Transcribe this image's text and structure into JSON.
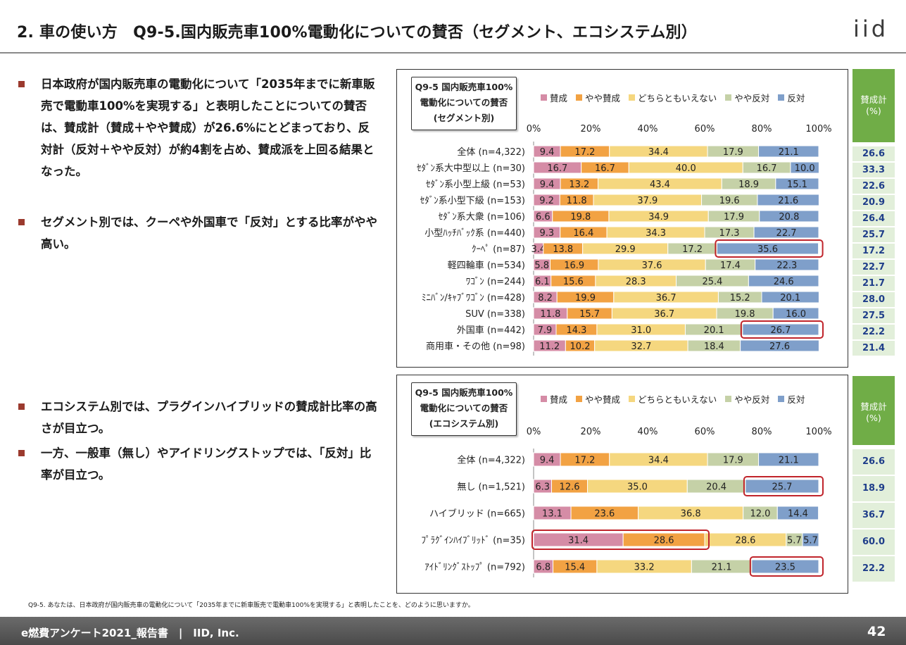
{
  "header": {
    "title": "2. 車の使い方　Q9-5.国内販売車100%電動化についての賛否（セグメント、エコシステム別）",
    "logo": "iid"
  },
  "bullets": [
    "日本政府が国内販売車の電動化について「2035年までに新車販売で電動車100%を実現する」と表明したことについての賛否は、賛成計（賛成＋やや賛成）が26.6%にとどまっており、反対計（反対＋やや反対）が約4割を占め、賛成派を上回る結果となった。",
    "セグメント別では、クーペや外国車で「反対」とする比率がやや高い。",
    "エコシステム別では、プラグインハイブリッドの賛成計比率の高さが目立つ。",
    "一方、一般車（無し）やアイドリングストップでは、「反対」比率が目立つ。"
  ],
  "colors": {
    "賛成": "#d58ca6",
    "やや賛成": "#f2a243",
    "どちらともいえない": "#f5d77f",
    "やや反対": "#c5d1a7",
    "反対": "#7f9fca",
    "highlight": "#c0242b",
    "sum_header": "#70ad47",
    "sum_cell": "#e2efda"
  },
  "legend_labels": [
    "賛成",
    "やや賛成",
    "どちらともいえない",
    "やや反対",
    "反対"
  ],
  "sum_header": "賛成計\n(%)",
  "chart_data": [
    {
      "type": "bar",
      "orientation": "horizontal-stacked-100",
      "title": "Q9-5 国内販売車100%\n電動化についての賛否\n(セグメント別)",
      "xlim": [
        0,
        100
      ],
      "x_ticks": [
        "0%",
        "20%",
        "40%",
        "60%",
        "80%",
        "100%"
      ],
      "categories": [
        "全体 (n=4,322)",
        "ｾﾀﾞﾝ系大中型以上 (n=30)",
        "ｾﾀﾞﾝ系小型上級 (n=53)",
        "ｾﾀﾞﾝ系小型下級 (n=153)",
        "ｾﾀﾞﾝ系大衆 (n=106)",
        "小型ﾊｯﾁﾊﾞｯｸ系 (n=440)",
        "ｸｰﾍﾟ (n=87)",
        "軽四輪車 (n=534)",
        "ﾜｺﾞﾝ (n=244)",
        "ﾐﾆﾊﾞﾝ/ｷｬﾌﾞﾜｺﾞﾝ (n=428)",
        "SUV (n=338)",
        "外国車 (n=442)",
        "商用車・その他 (n=98)"
      ],
      "series": [
        {
          "name": "賛成",
          "values": [
            9.4,
            16.7,
            9.4,
            9.2,
            6.6,
            9.3,
            3.4,
            5.8,
            6.1,
            8.2,
            11.8,
            7.9,
            11.2
          ]
        },
        {
          "name": "やや賛成",
          "values": [
            17.2,
            16.7,
            13.2,
            11.8,
            19.8,
            16.4,
            13.8,
            16.9,
            15.6,
            19.9,
            15.7,
            14.3,
            10.2
          ]
        },
        {
          "name": "どちらともいえない",
          "values": [
            34.4,
            40.0,
            43.4,
            37.9,
            34.9,
            34.3,
            29.9,
            37.6,
            28.3,
            36.7,
            36.7,
            31.0,
            32.7
          ]
        },
        {
          "name": "やや反対",
          "values": [
            17.9,
            16.7,
            18.9,
            19.6,
            17.9,
            17.3,
            17.2,
            17.4,
            25.4,
            15.2,
            19.8,
            20.1,
            18.4
          ]
        },
        {
          "name": "反対",
          "values": [
            21.1,
            10.0,
            15.1,
            21.6,
            20.8,
            22.7,
            35.6,
            22.3,
            24.6,
            20.1,
            16.0,
            26.7,
            27.6
          ]
        }
      ],
      "highlights": [
        {
          "row": 6,
          "from_series": 4,
          "to_series": 4
        },
        {
          "row": 11,
          "from_series": 4,
          "to_series": 4
        }
      ],
      "sum_values": [
        "26.6",
        "33.3",
        "22.6",
        "20.9",
        "26.4",
        "25.7",
        "17.2",
        "22.7",
        "21.7",
        "28.0",
        "27.5",
        "22.2",
        "21.4"
      ]
    },
    {
      "type": "bar",
      "orientation": "horizontal-stacked-100",
      "title": "Q9-5 国内販売車100%\n電動化についての賛否\n(エコシステム別)",
      "xlim": [
        0,
        100
      ],
      "x_ticks": [
        "0%",
        "20%",
        "40%",
        "60%",
        "80%",
        "100%"
      ],
      "categories": [
        "全体 (n=4,322)",
        "無し (n=1,521)",
        "ハイブリッド (n=665)",
        "ﾌﾟﾗｸﾞｲﾝﾊｲﾌﾞﾘｯﾄﾞ (n=35)",
        "ｱｲﾄﾞﾘﾝｸﾞｽﾄｯﾌﾟ (n=792)"
      ],
      "series": [
        {
          "name": "賛成",
          "values": [
            9.4,
            6.3,
            13.1,
            31.4,
            6.8
          ]
        },
        {
          "name": "やや賛成",
          "values": [
            17.2,
            12.6,
            23.6,
            28.6,
            15.4
          ]
        },
        {
          "name": "どちらともいえない",
          "values": [
            34.4,
            35.0,
            36.8,
            28.6,
            33.2
          ]
        },
        {
          "name": "やや反対",
          "values": [
            17.9,
            20.4,
            12.0,
            5.7,
            21.1
          ]
        },
        {
          "name": "反対",
          "values": [
            21.1,
            25.7,
            14.4,
            5.7,
            23.5
          ]
        }
      ],
      "highlights": [
        {
          "row": 1,
          "from_series": 4,
          "to_series": 4
        },
        {
          "row": 3,
          "from_series": 0,
          "to_series": 1
        },
        {
          "row": 4,
          "from_series": 4,
          "to_series": 4
        }
      ],
      "sum_values": [
        "26.6",
        "18.9",
        "36.7",
        "60.0",
        "22.2"
      ]
    }
  ],
  "footnote": "Q9-5. あなたは、日本政府が国内販売車の電動化について「2035年までに新車販売で電動車100%を実現する」と表明したことを、どのように思いますか。",
  "footer": {
    "text": "e燃費アンケート2021_報告書　|　IID, Inc.",
    "page": "42"
  }
}
